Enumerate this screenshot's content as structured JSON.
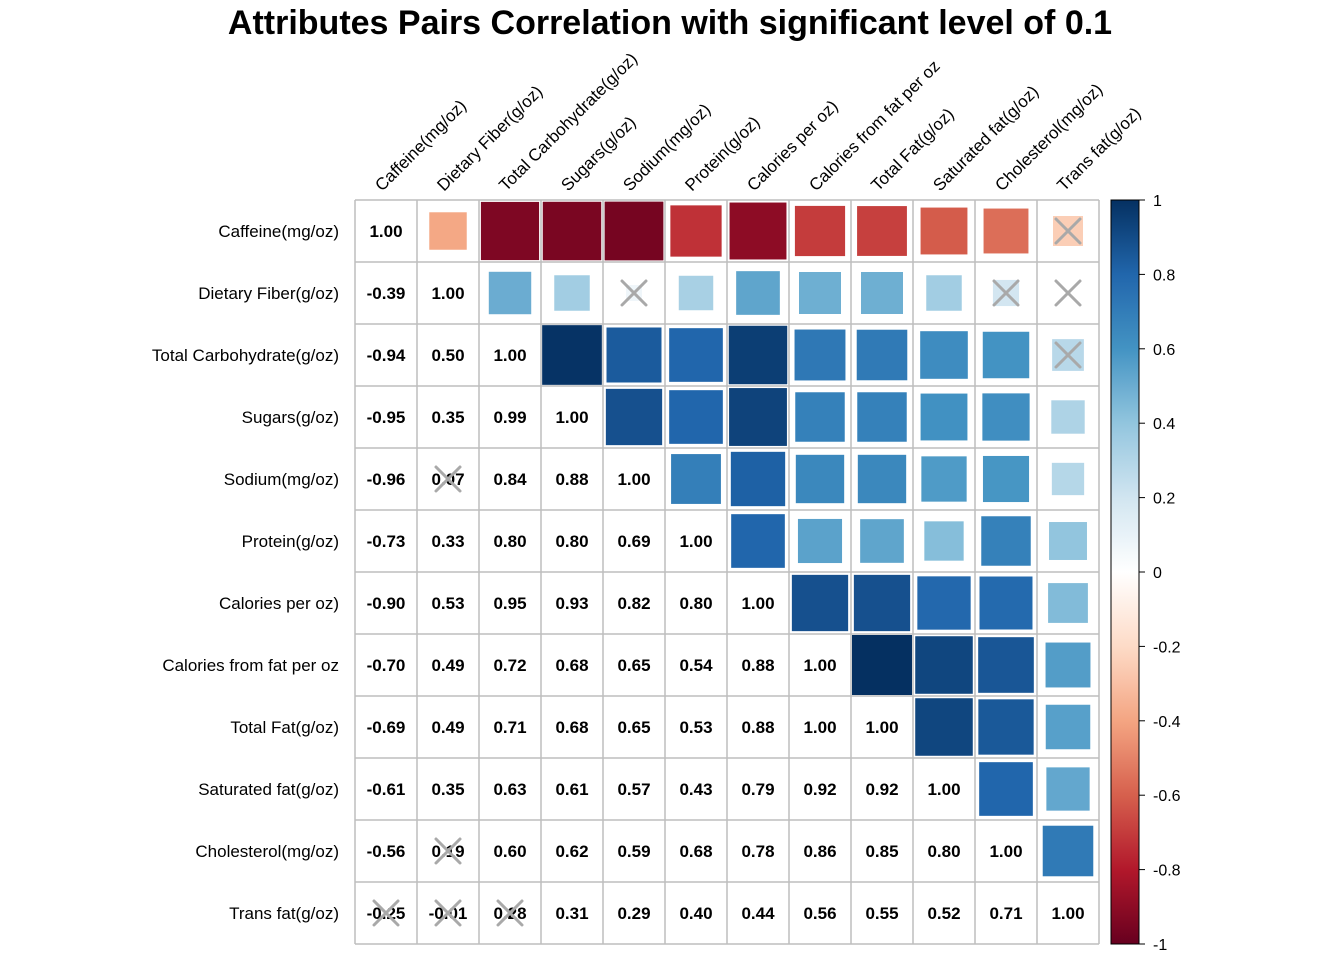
{
  "chart_data": {
    "type": "heatmap",
    "title": "Attributes Pairs Correlation with significant level of 0.1",
    "variables": [
      "Caffeine(mg/oz)",
      "Dietary Fiber(g/oz)",
      "Total Carbohydrate(g/oz)",
      "Sugars(g/oz)",
      "Sodium(mg/oz)",
      "Protein(g/oz)",
      "Calories per oz)",
      "Calories from fat per oz",
      "Total Fat(g/oz)",
      "Saturated fat(g/oz)",
      "Cholesterol(mg/oz)",
      "Trans fat(g/oz)"
    ],
    "row_labels": [
      "Caffeine(mg/oz)",
      "Dietary Fiber(g/oz)",
      "Total Carbohydrate(g/oz)",
      "Sugars(g/oz)",
      "Sodium(mg/oz)",
      "Protein(g/oz)",
      "Calories per oz)",
      "Calories from fat per oz",
      "Total Fat(g/oz)",
      "Saturated fat(g/oz)",
      "Cholesterol(mg/oz)",
      "Trans fat(g/oz)"
    ],
    "column_labels": [
      "Caffeine(mg/oz)",
      "Dietary Fiber(g/oz)",
      "Total Carbohydrate(g/oz)",
      "Sugars(g/oz)",
      "Sodium(mg/oz)",
      "Protein(g/oz)",
      "Calories per oz)",
      "Calories from fat per oz",
      "Total Fat(g/oz)",
      "Saturated fat(g/oz)",
      "Cholesterol(mg/oz)",
      "Trans fat(g/oz)"
    ],
    "matrix": [
      [
        1.0,
        -0.39,
        -0.94,
        -0.95,
        -0.96,
        -0.73,
        -0.9,
        -0.7,
        -0.69,
        -0.61,
        -0.56,
        -0.25
      ],
      [
        -0.39,
        1.0,
        0.5,
        0.35,
        0.07,
        0.33,
        0.53,
        0.49,
        0.49,
        0.35,
        0.19,
        -0.01
      ],
      [
        -0.94,
        0.5,
        1.0,
        0.99,
        0.84,
        0.8,
        0.95,
        0.72,
        0.71,
        0.63,
        0.6,
        0.28
      ],
      [
        -0.95,
        0.35,
        0.99,
        1.0,
        0.88,
        0.8,
        0.93,
        0.68,
        0.68,
        0.61,
        0.62,
        0.31
      ],
      [
        -0.96,
        0.07,
        0.84,
        0.88,
        1.0,
        0.69,
        0.82,
        0.65,
        0.65,
        0.57,
        0.59,
        0.29
      ],
      [
        -0.73,
        0.33,
        0.8,
        0.8,
        0.69,
        1.0,
        0.8,
        0.54,
        0.53,
        0.43,
        0.68,
        0.4
      ],
      [
        -0.9,
        0.53,
        0.95,
        0.93,
        0.82,
        0.8,
        1.0,
        0.88,
        0.88,
        0.79,
        0.78,
        0.44
      ],
      [
        -0.7,
        0.49,
        0.72,
        0.68,
        0.65,
        0.54,
        0.88,
        1.0,
        1.0,
        0.92,
        0.86,
        0.56
      ],
      [
        -0.69,
        0.49,
        0.71,
        0.68,
        0.65,
        0.53,
        0.88,
        1.0,
        1.0,
        0.92,
        0.85,
        0.55
      ],
      [
        -0.61,
        0.35,
        0.63,
        0.61,
        0.57,
        0.43,
        0.79,
        0.92,
        0.92,
        1.0,
        0.8,
        0.52
      ],
      [
        -0.56,
        0.19,
        0.6,
        0.62,
        0.59,
        0.68,
        0.78,
        0.86,
        0.85,
        0.8,
        1.0,
        0.71
      ],
      [
        -0.25,
        -0.01,
        0.28,
        0.31,
        0.29,
        0.4,
        0.44,
        0.56,
        0.55,
        0.52,
        0.71,
        1.0
      ]
    ],
    "not_significant": [
      [
        0,
        11
      ],
      [
        1,
        4
      ],
      [
        1,
        10
      ],
      [
        1,
        11
      ],
      [
        2,
        11
      ]
    ],
    "upper_triangle": "squares",
    "lower_triangle": "numbers",
    "colorbar": {
      "ticks": [
        "1",
        "0.8",
        "0.6",
        "0.4",
        "0.2",
        "0",
        "-0.2",
        "-0.4",
        "-0.6",
        "-0.8",
        "-1"
      ],
      "range": [
        -1,
        1
      ],
      "palette": "RdBu"
    },
    "colors": {
      "grid": "#bebebe",
      "cross": "#a9a9a9",
      "palette": [
        "#67001F",
        "#B2182B",
        "#D6604D",
        "#F4A582",
        "#FDDBC7",
        "#FFFFFF",
        "#D1E5F0",
        "#92C5DE",
        "#4393C3",
        "#2166AC",
        "#053061"
      ]
    }
  }
}
